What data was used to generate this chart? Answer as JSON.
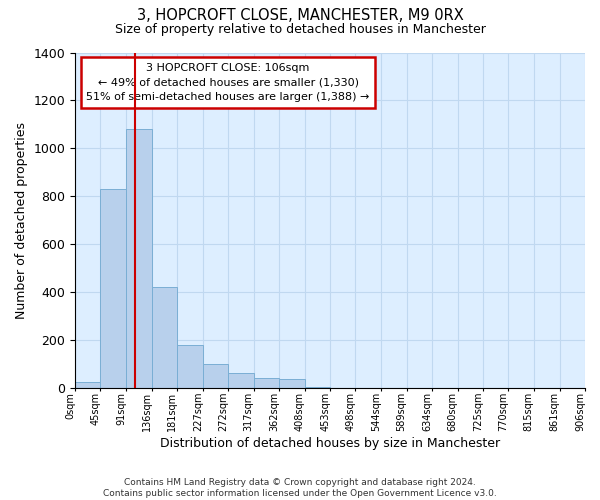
{
  "title1": "3, HOPCROFT CLOSE, MANCHESTER, M9 0RX",
  "title2": "Size of property relative to detached houses in Manchester",
  "xlabel": "Distribution of detached houses by size in Manchester",
  "ylabel": "Number of detached properties",
  "annotation_title": "3 HOPCROFT CLOSE: 106sqm",
  "annotation_line1": "← 49% of detached houses are smaller (1,330)",
  "annotation_line2": "51% of semi-detached houses are larger (1,388) →",
  "footer1": "Contains HM Land Registry data © Crown copyright and database right 2024.",
  "footer2": "Contains public sector information licensed under the Open Government Licence v3.0.",
  "bin_edges": [
    0,
    45,
    91,
    136,
    181,
    227,
    272,
    317,
    362,
    408,
    453,
    498,
    544,
    589,
    634,
    680,
    725,
    770,
    815,
    861,
    906
  ],
  "bin_counts": [
    25,
    830,
    1080,
    420,
    180,
    100,
    60,
    40,
    35,
    5,
    0,
    0,
    0,
    0,
    0,
    0,
    0,
    0,
    0,
    0
  ],
  "bar_color": "#b8d0ec",
  "bar_edge_color": "#7aaed4",
  "vline_color": "#cc0000",
  "vline_x": 106,
  "annotation_box_color": "#cc0000",
  "grid_color": "#c0d8f0",
  "background_color": "#ddeeff",
  "ylim": [
    0,
    1400
  ],
  "yticks": [
    0,
    200,
    400,
    600,
    800,
    1000,
    1200,
    1400
  ],
  "tick_labels": [
    "0sqm",
    "45sqm",
    "91sqm",
    "136sqm",
    "181sqm",
    "227sqm",
    "272sqm",
    "317sqm",
    "362sqm",
    "408sqm",
    "453sqm",
    "498sqm",
    "544sqm",
    "589sqm",
    "634sqm",
    "680sqm",
    "725sqm",
    "770sqm",
    "815sqm",
    "861sqm",
    "906sqm"
  ]
}
